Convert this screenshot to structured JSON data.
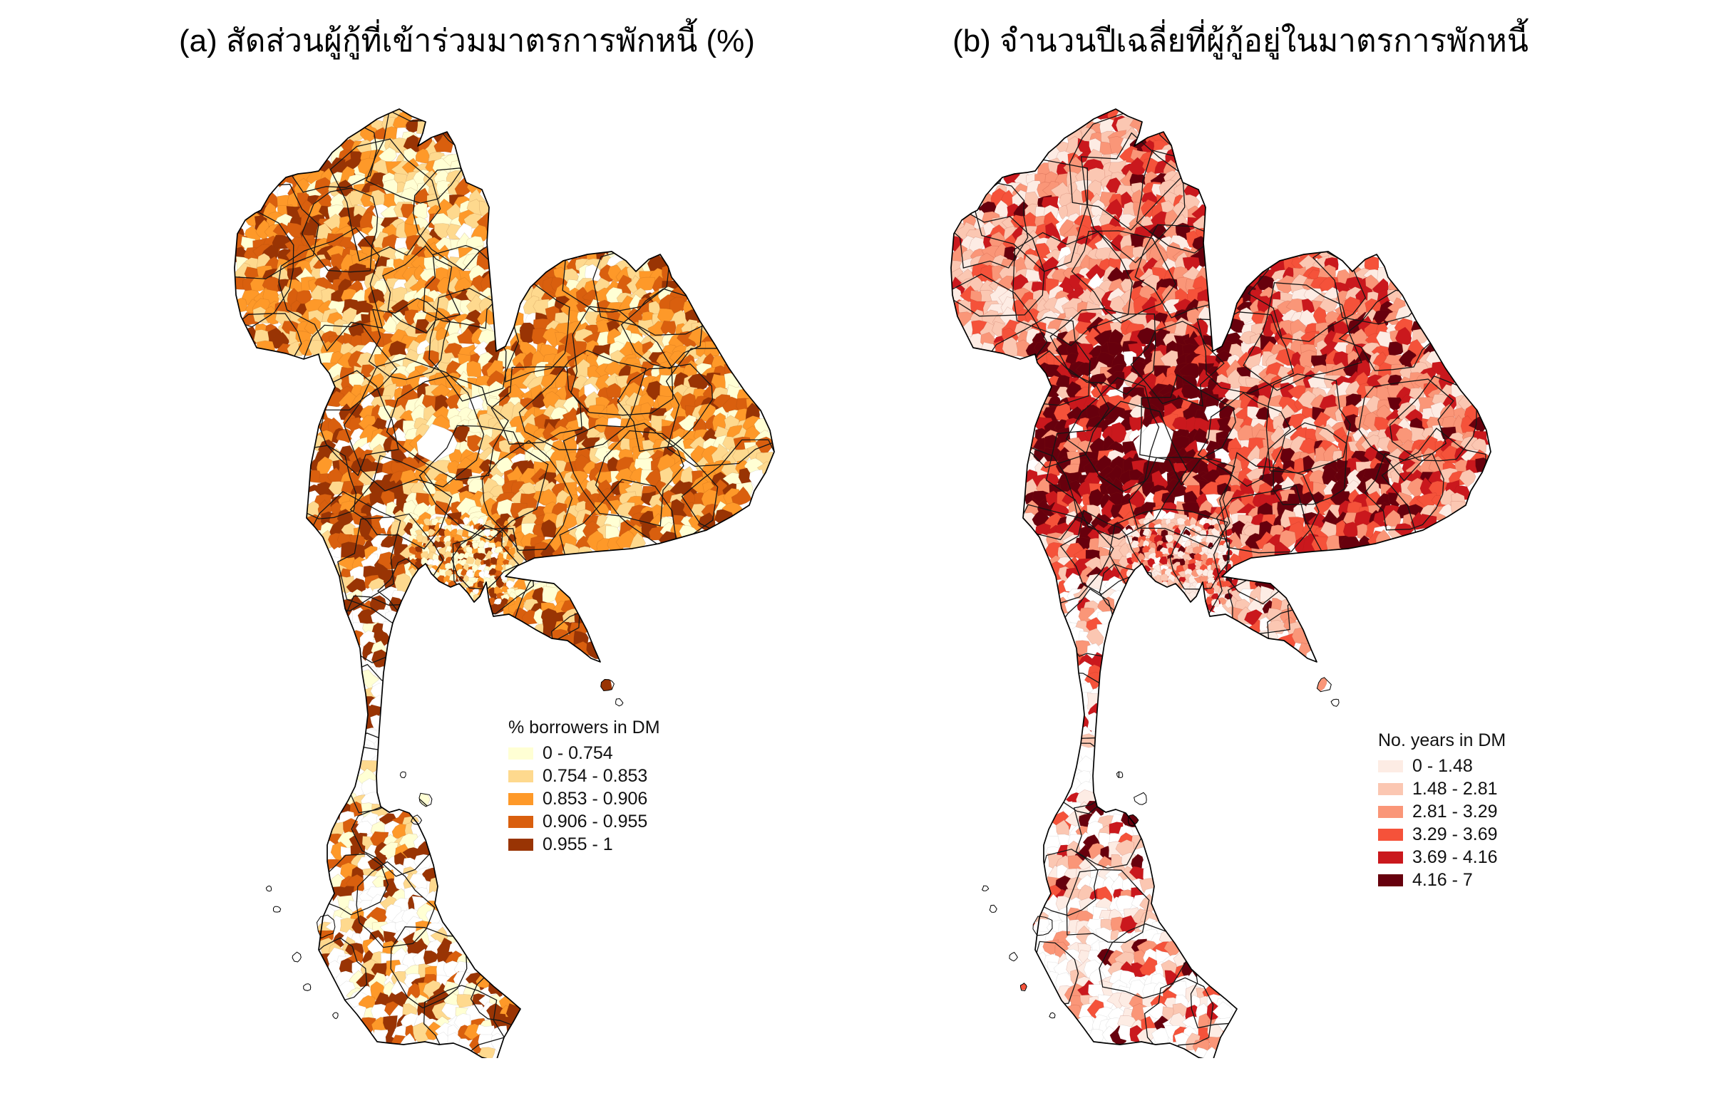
{
  "page": {
    "background": "#FFFFFF"
  },
  "panels": [
    {
      "id": "a",
      "title": "(a) สัดส่วนผู้กู้ที่เข้าร่วมมาตรการพักหนี้ (%)",
      "legend": {
        "title": "% borrowers in DM",
        "classes": [
          {
            "label": "0 - 0.754",
            "color": "#FFFFD4"
          },
          {
            "label": "0.754 - 0.853",
            "color": "#FED98E"
          },
          {
            "label": "0.853 - 0.906",
            "color": "#FE9929"
          },
          {
            "label": "0.906 - 0.955",
            "color": "#D95F0E"
          },
          {
            "label": "0.955 - 1",
            "color": "#993404"
          }
        ]
      },
      "no_data_color": "#FFFFFF",
      "outline_color": "#000000"
    },
    {
      "id": "b",
      "title": "(b) จำนวนปีเฉลี่ยที่ผู้กู้อยู่ในมาตรการพักหนี้",
      "legend": {
        "title": "No. years in DM",
        "classes": [
          {
            "label": "0 - 1.48",
            "color": "#FDECE4"
          },
          {
            "label": "1.48 - 2.81",
            "color": "#FBC7B2"
          },
          {
            "label": "2.81 - 3.29",
            "color": "#FA9678"
          },
          {
            "label": "3.29 - 3.69",
            "color": "#F5523A"
          },
          {
            "label": "3.69 - 4.16",
            "color": "#CA181D"
          },
          {
            "label": "4.16 - 7",
            "color": "#67000D"
          }
        ]
      },
      "no_data_color": "#FFFFFF",
      "outline_color": "#000000"
    }
  ],
  "chart_data": [
    {
      "type": "choropleth",
      "panel": "a",
      "title": "(a) สัดส่วนผู้กู้ที่เข้าร่วมมาตรการพักหนี้ (%)",
      "geography": "Thailand, subdistrict (tambon) polygons with province boundaries",
      "legend_title": "% borrowers in DM",
      "class_breaks": [
        0,
        0.754,
        0.853,
        0.906,
        0.955,
        1
      ],
      "classes": [
        {
          "range": "0 - 0.754",
          "color": "#FFFFD4"
        },
        {
          "range": "0.754 - 0.853",
          "color": "#FED98E"
        },
        {
          "range": "0.853 - 0.906",
          "color": "#FE9929"
        },
        {
          "range": "0.906 - 0.955",
          "color": "#D95F0E"
        },
        {
          "range": "0.955 - 1",
          "color": "#993404"
        }
      ],
      "no_data_color": "#FFFFFF",
      "legend_position": "center-right of lower map area",
      "notes": "High (dark) values concentrated in north, northeast and western central regions; southern peninsula largely no-data (white) with scattered dark subdistricts."
    },
    {
      "type": "choropleth",
      "panel": "b",
      "title": "(b) จำนวนปีเฉลี่ยที่ผู้กู้อยู่ในมาตรการพักหนี้",
      "geography": "Thailand, subdistrict (tambon) polygons with province boundaries",
      "legend_title": "No. years in DM",
      "class_breaks": [
        0,
        1.48,
        2.81,
        3.29,
        3.69,
        4.16,
        7
      ],
      "classes": [
        {
          "range": "0 - 1.48",
          "color": "#FDECE4"
        },
        {
          "range": "1.48 - 2.81",
          "color": "#FBC7B2"
        },
        {
          "range": "2.81 - 3.29",
          "color": "#FA9678"
        },
        {
          "range": "3.29 - 3.69",
          "color": "#F5523A"
        },
        {
          "range": "3.69 - 4.16",
          "color": "#CA181D"
        },
        {
          "range": "4.16 - 7",
          "color": "#67000D"
        }
      ],
      "no_data_color": "#FFFFFF",
      "legend_position": "center-right of lower map area",
      "notes": "Darkest (4.16-7 yrs) cluster in west-central provinces and south of northeast region; northwest mostly light pink; peninsula mostly white."
    }
  ]
}
